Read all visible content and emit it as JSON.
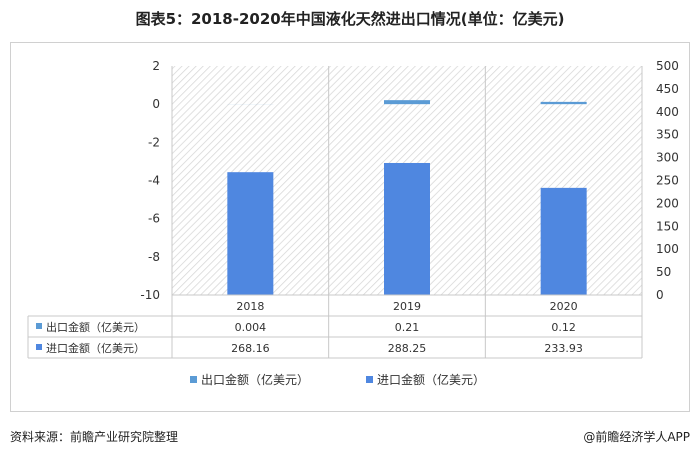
{
  "title": "图表5：2018-2020年中国液化天然进出口情况(单位：亿美元)",
  "source": "资料来源：前瞻产业研究院整理",
  "brand": "@前瞻经济学人APP",
  "colors": {
    "export": "#5b9bd5",
    "import": "#4f87e0",
    "hatch": "#d9d9d9",
    "grid": "#c8c8c8"
  },
  "chart_data": {
    "type": "bar",
    "categories": [
      "2018",
      "2019",
      "2020"
    ],
    "series": [
      {
        "name": "出口金额（亿美元）",
        "axis": "left",
        "values": [
          0.004,
          0.21,
          0.12
        ],
        "labels": [
          "0.004",
          "0.21",
          "0.12"
        ]
      },
      {
        "name": "进口金额（亿美元）",
        "axis": "right",
        "values": [
          268.16,
          288.25,
          233.93
        ],
        "labels": [
          "268.16",
          "288.25",
          "233.93"
        ]
      }
    ],
    "y_left": {
      "min": -10,
      "max": 2,
      "ticks": [
        2,
        0,
        -2,
        -4,
        -6,
        -8,
        -10
      ]
    },
    "y_right": {
      "min": 0,
      "max": 500,
      "ticks": [
        500,
        450,
        400,
        350,
        300,
        250,
        200,
        150,
        100,
        50,
        0
      ]
    },
    "legend_position": "bottom",
    "data_table": true
  }
}
